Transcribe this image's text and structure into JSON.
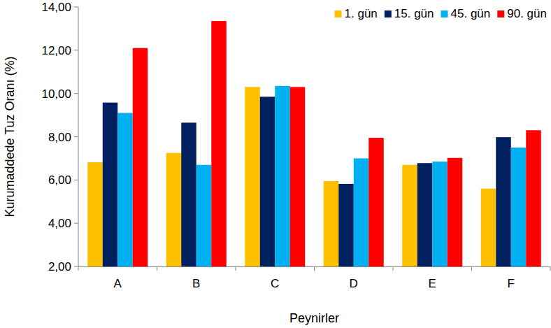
{
  "chart_data": {
    "type": "bar",
    "x_label": "Peynirler",
    "y_label": "Kurumaddede Tuz Oranı (%)",
    "categories": [
      "A",
      "B",
      "C",
      "D",
      "E",
      "F"
    ],
    "series": [
      {
        "name": "1. gün",
        "color": "#ffc000",
        "values": [
          6.82,
          7.25,
          10.3,
          5.95,
          6.7,
          5.6
        ]
      },
      {
        "name": "15. gün",
        "color": "#002060",
        "values": [
          9.58,
          8.65,
          9.85,
          5.82,
          6.78,
          7.98
        ]
      },
      {
        "name": "45. gün",
        "color": "#00b0f0",
        "values": [
          9.1,
          6.7,
          10.35,
          7.0,
          6.85,
          7.5
        ]
      },
      {
        "name": "90. gün",
        "color": "#ff0000",
        "values": [
          12.1,
          13.35,
          10.3,
          7.95,
          7.02,
          8.3
        ]
      }
    ],
    "ylim": [
      2,
      14
    ],
    "yticks": [
      {
        "value": 2,
        "label": "2,00"
      },
      {
        "value": 4,
        "label": "4,00"
      },
      {
        "value": 6,
        "label": "6,00"
      },
      {
        "value": 8,
        "label": "8,00"
      },
      {
        "value": 10,
        "label": "10,00"
      },
      {
        "value": 12,
        "label": "12,00"
      },
      {
        "value": 14,
        "label": "14,00"
      }
    ],
    "grid": false,
    "legend": "top-right"
  }
}
